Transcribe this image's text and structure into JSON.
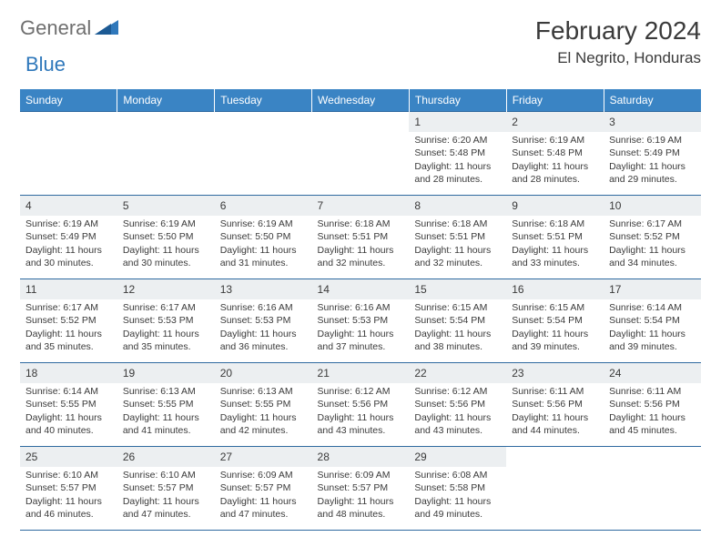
{
  "logo": {
    "textGeneral": "General",
    "textBlue": "Blue",
    "colorGray": "#6f6f6f",
    "colorBlue": "#2f78bb"
  },
  "header": {
    "monthTitle": "February 2024",
    "location": "El Negrito, Honduras"
  },
  "style": {
    "headerBg": "#3a84c4",
    "headerText": "#ffffff",
    "rowBorder": "#2f6aa0",
    "dayNumBg": "#eceff1",
    "textColor": "#3a3a3a",
    "pageBg": "#ffffff",
    "thFontSize": 12,
    "dayNumFontSize": 12,
    "cellFontSize": 10.5
  },
  "columns": [
    "Sunday",
    "Monday",
    "Tuesday",
    "Wednesday",
    "Thursday",
    "Friday",
    "Saturday"
  ],
  "weeks": [
    [
      null,
      null,
      null,
      null,
      {
        "d": "1",
        "sr": "6:20 AM",
        "ss": "5:48 PM",
        "dl": "11 hours and 28 minutes."
      },
      {
        "d": "2",
        "sr": "6:19 AM",
        "ss": "5:48 PM",
        "dl": "11 hours and 28 minutes."
      },
      {
        "d": "3",
        "sr": "6:19 AM",
        "ss": "5:49 PM",
        "dl": "11 hours and 29 minutes."
      }
    ],
    [
      {
        "d": "4",
        "sr": "6:19 AM",
        "ss": "5:49 PM",
        "dl": "11 hours and 30 minutes."
      },
      {
        "d": "5",
        "sr": "6:19 AM",
        "ss": "5:50 PM",
        "dl": "11 hours and 30 minutes."
      },
      {
        "d": "6",
        "sr": "6:19 AM",
        "ss": "5:50 PM",
        "dl": "11 hours and 31 minutes."
      },
      {
        "d": "7",
        "sr": "6:18 AM",
        "ss": "5:51 PM",
        "dl": "11 hours and 32 minutes."
      },
      {
        "d": "8",
        "sr": "6:18 AM",
        "ss": "5:51 PM",
        "dl": "11 hours and 32 minutes."
      },
      {
        "d": "9",
        "sr": "6:18 AM",
        "ss": "5:51 PM",
        "dl": "11 hours and 33 minutes."
      },
      {
        "d": "10",
        "sr": "6:17 AM",
        "ss": "5:52 PM",
        "dl": "11 hours and 34 minutes."
      }
    ],
    [
      {
        "d": "11",
        "sr": "6:17 AM",
        "ss": "5:52 PM",
        "dl": "11 hours and 35 minutes."
      },
      {
        "d": "12",
        "sr": "6:17 AM",
        "ss": "5:53 PM",
        "dl": "11 hours and 35 minutes."
      },
      {
        "d": "13",
        "sr": "6:16 AM",
        "ss": "5:53 PM",
        "dl": "11 hours and 36 minutes."
      },
      {
        "d": "14",
        "sr": "6:16 AM",
        "ss": "5:53 PM",
        "dl": "11 hours and 37 minutes."
      },
      {
        "d": "15",
        "sr": "6:15 AM",
        "ss": "5:54 PM",
        "dl": "11 hours and 38 minutes."
      },
      {
        "d": "16",
        "sr": "6:15 AM",
        "ss": "5:54 PM",
        "dl": "11 hours and 39 minutes."
      },
      {
        "d": "17",
        "sr": "6:14 AM",
        "ss": "5:54 PM",
        "dl": "11 hours and 39 minutes."
      }
    ],
    [
      {
        "d": "18",
        "sr": "6:14 AM",
        "ss": "5:55 PM",
        "dl": "11 hours and 40 minutes."
      },
      {
        "d": "19",
        "sr": "6:13 AM",
        "ss": "5:55 PM",
        "dl": "11 hours and 41 minutes."
      },
      {
        "d": "20",
        "sr": "6:13 AM",
        "ss": "5:55 PM",
        "dl": "11 hours and 42 minutes."
      },
      {
        "d": "21",
        "sr": "6:12 AM",
        "ss": "5:56 PM",
        "dl": "11 hours and 43 minutes."
      },
      {
        "d": "22",
        "sr": "6:12 AM",
        "ss": "5:56 PM",
        "dl": "11 hours and 43 minutes."
      },
      {
        "d": "23",
        "sr": "6:11 AM",
        "ss": "5:56 PM",
        "dl": "11 hours and 44 minutes."
      },
      {
        "d": "24",
        "sr": "6:11 AM",
        "ss": "5:56 PM",
        "dl": "11 hours and 45 minutes."
      }
    ],
    [
      {
        "d": "25",
        "sr": "6:10 AM",
        "ss": "5:57 PM",
        "dl": "11 hours and 46 minutes."
      },
      {
        "d": "26",
        "sr": "6:10 AM",
        "ss": "5:57 PM",
        "dl": "11 hours and 47 minutes."
      },
      {
        "d": "27",
        "sr": "6:09 AM",
        "ss": "5:57 PM",
        "dl": "11 hours and 47 minutes."
      },
      {
        "d": "28",
        "sr": "6:09 AM",
        "ss": "5:57 PM",
        "dl": "11 hours and 48 minutes."
      },
      {
        "d": "29",
        "sr": "6:08 AM",
        "ss": "5:58 PM",
        "dl": "11 hours and 49 minutes."
      },
      null,
      null
    ]
  ],
  "labels": {
    "sunrise": "Sunrise:",
    "sunset": "Sunset:",
    "daylight": "Daylight:"
  }
}
